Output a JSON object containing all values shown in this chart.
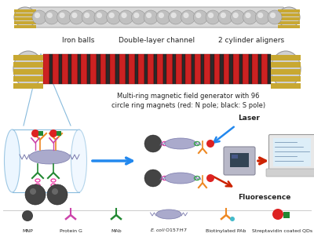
{
  "bg_color": "#ffffff",
  "labels": {
    "iron_balls": "Iron balls",
    "double_layer": "Double-layer channel",
    "aligners": "2 cylinder aligners",
    "multi_ring": "Multi-ring magnetic field generator with 96\ncircle ring magnets (red: N pole; black: S pole)",
    "laser": "Laser",
    "fluorescence": "Fluorescence"
  },
  "colors": {
    "red_magnet": "#cc2222",
    "black_magnet": "#2a2a2a",
    "gold_end": "#c8a832",
    "cylinder_gray": "#c8c8c8",
    "cylinder_light": "#e8e8e8",
    "ball_gray": "#b0b0b0",
    "ball_highlight": "#e0e0e0",
    "arrow_blue": "#2288ee",
    "arrow_red": "#cc2200",
    "tube_edge": "#88bbdd",
    "tube_fill": "none",
    "bacteria_fill": "#9999bb",
    "bacteria_edge": "#6666aa",
    "mnp_fill": "#444444",
    "protein_g": "#cc44aa",
    "mab_green": "#228833",
    "qd_red": "#dd2222",
    "qd_green": "#228833",
    "biotin_orange": "#ee8822",
    "link_pink": "#ee44aa",
    "link_green": "#33aa44"
  }
}
